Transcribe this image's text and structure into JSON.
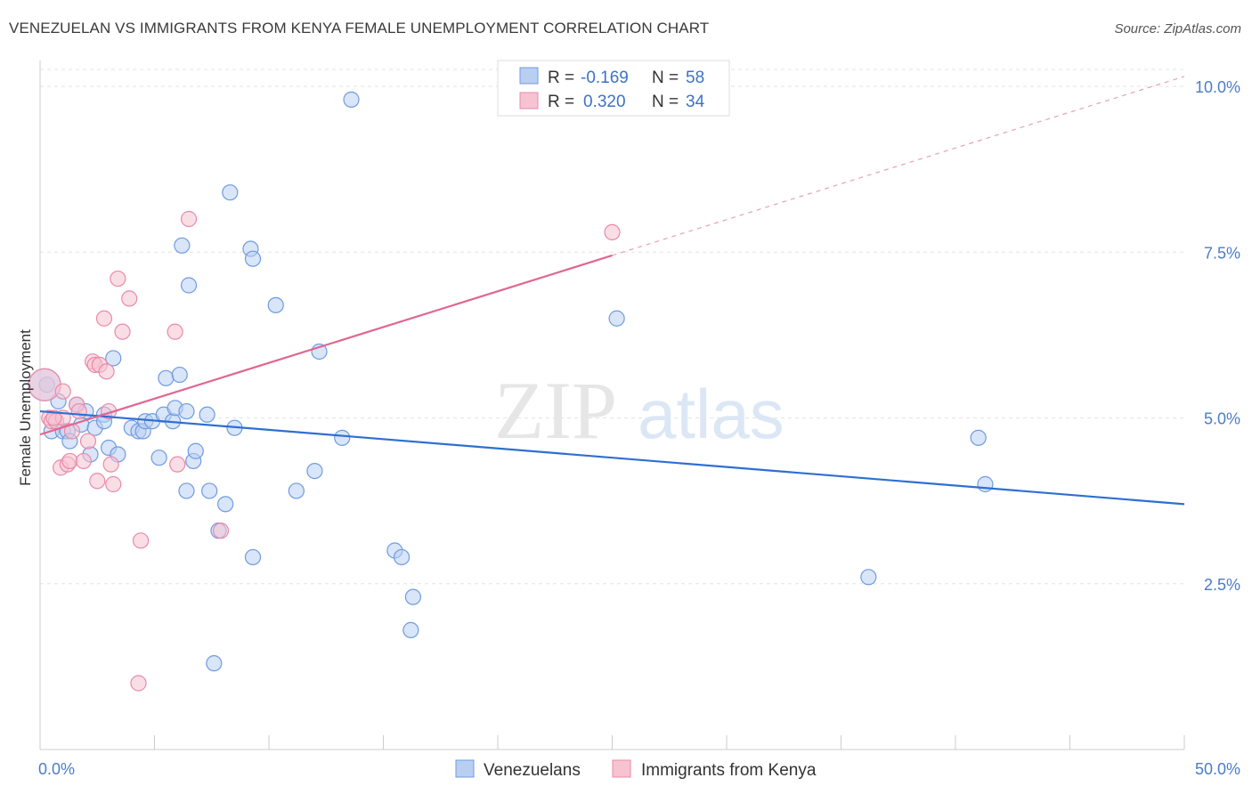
{
  "title": "VENEZUELAN VS IMMIGRANTS FROM KENYA FEMALE UNEMPLOYMENT CORRELATION CHART",
  "source": "Source: ZipAtlas.com",
  "watermark": {
    "zip": "ZIP",
    "atlas": "atlas"
  },
  "chart_data": {
    "type": "scatter",
    "title": "VENEZUELAN VS IMMIGRANTS FROM KENYA FEMALE UNEMPLOYMENT CORRELATION CHART",
    "xlabel": "",
    "ylabel": "Female Unemployment",
    "xlim": [
      0,
      50
    ],
    "ylim": [
      0,
      10.5
    ],
    "x_tick_labels": [
      "0.0%",
      "50.0%"
    ],
    "y_ticks": [
      2.5,
      5.0,
      7.5,
      10.0
    ],
    "y_tick_labels": [
      "2.5%",
      "5.0%",
      "7.5%",
      "10.0%"
    ],
    "grid": true,
    "legend": {
      "position": "top-center",
      "entries": [
        {
          "r_label": "R =",
          "r_value": "-0.169",
          "n_label": "N =",
          "n_value": "58"
        },
        {
          "r_label": "R =",
          "r_value": "0.320",
          "n_label": "N =",
          "n_value": "34"
        }
      ]
    },
    "series": [
      {
        "name": "Venezuelans",
        "color": "#6f9be0",
        "fill": "#b9cff2",
        "trend": {
          "x": [
            0,
            50
          ],
          "y": [
            5.1,
            3.7
          ]
        },
        "points": [
          [
            0.3,
            5.5
          ],
          [
            0.5,
            4.8
          ],
          [
            0.8,
            5.25
          ],
          [
            1.0,
            4.8
          ],
          [
            1.2,
            4.8
          ],
          [
            1.3,
            4.65
          ],
          [
            1.6,
            5.2
          ],
          [
            1.8,
            4.9
          ],
          [
            2.0,
            5.1
          ],
          [
            2.2,
            4.45
          ],
          [
            2.4,
            4.85
          ],
          [
            2.8,
            5.05
          ],
          [
            2.8,
            4.95
          ],
          [
            3.0,
            4.55
          ],
          [
            3.2,
            5.9
          ],
          [
            3.4,
            4.45
          ],
          [
            4.0,
            4.85
          ],
          [
            4.3,
            4.8
          ],
          [
            4.5,
            4.8
          ],
          [
            4.6,
            4.95
          ],
          [
            4.9,
            4.95
          ],
          [
            5.2,
            4.4
          ],
          [
            5.4,
            5.05
          ],
          [
            5.5,
            5.6
          ],
          [
            5.8,
            4.95
          ],
          [
            5.9,
            5.15
          ],
          [
            6.1,
            5.65
          ],
          [
            6.2,
            7.6
          ],
          [
            6.4,
            5.1
          ],
          [
            6.4,
            3.9
          ],
          [
            6.5,
            7.0
          ],
          [
            6.7,
            4.35
          ],
          [
            6.8,
            4.5
          ],
          [
            7.3,
            5.05
          ],
          [
            7.4,
            3.9
          ],
          [
            7.6,
            1.3
          ],
          [
            7.8,
            3.3
          ],
          [
            8.1,
            3.7
          ],
          [
            8.3,
            8.4
          ],
          [
            8.5,
            4.85
          ],
          [
            9.2,
            7.55
          ],
          [
            9.3,
            2.9
          ],
          [
            9.3,
            7.4
          ],
          [
            10.3,
            6.7
          ],
          [
            11.2,
            3.9
          ],
          [
            12.0,
            4.2
          ],
          [
            12.2,
            6.0
          ],
          [
            13.2,
            4.7
          ],
          [
            13.6,
            9.8
          ],
          [
            15.5,
            3.0
          ],
          [
            15.8,
            2.9
          ],
          [
            16.2,
            1.8
          ],
          [
            16.3,
            2.3
          ],
          [
            25.2,
            6.5
          ],
          [
            36.2,
            2.6
          ],
          [
            41.0,
            4.7
          ],
          [
            41.3,
            4.0
          ],
          [
            0.2,
            5.5
          ]
        ]
      },
      {
        "name": "Immigrants from Kenya",
        "color": "#e98aa8",
        "fill": "#f6c3d2",
        "trend": {
          "x": [
            0,
            25
          ],
          "y": [
            4.75,
            7.45
          ],
          "dashed_to": {
            "x": 50,
            "y": 10.15
          }
        },
        "points": [
          [
            0.2,
            5.5
          ],
          [
            0.4,
            5.0
          ],
          [
            0.5,
            4.95
          ],
          [
            0.7,
            4.95
          ],
          [
            0.9,
            4.25
          ],
          [
            1.0,
            5.4
          ],
          [
            1.2,
            4.3
          ],
          [
            1.3,
            4.35
          ],
          [
            1.4,
            4.8
          ],
          [
            1.6,
            5.2
          ],
          [
            1.7,
            5.1
          ],
          [
            1.9,
            4.35
          ],
          [
            2.1,
            4.65
          ],
          [
            2.3,
            5.85
          ],
          [
            2.4,
            5.8
          ],
          [
            2.6,
            5.8
          ],
          [
            2.8,
            6.5
          ],
          [
            2.9,
            5.7
          ],
          [
            3.0,
            5.1
          ],
          [
            3.1,
            4.3
          ],
          [
            3.2,
            4.0
          ],
          [
            3.4,
            7.1
          ],
          [
            3.6,
            6.3
          ],
          [
            3.9,
            6.8
          ],
          [
            4.3,
            1.0
          ],
          [
            4.4,
            3.15
          ],
          [
            5.9,
            6.3
          ],
          [
            6.0,
            4.3
          ],
          [
            6.5,
            8.0
          ],
          [
            7.9,
            3.3
          ],
          [
            2.5,
            4.05
          ],
          [
            1.0,
            5.0
          ],
          [
            25.0,
            7.8
          ],
          [
            0.6,
            5.0
          ]
        ]
      }
    ]
  }
}
